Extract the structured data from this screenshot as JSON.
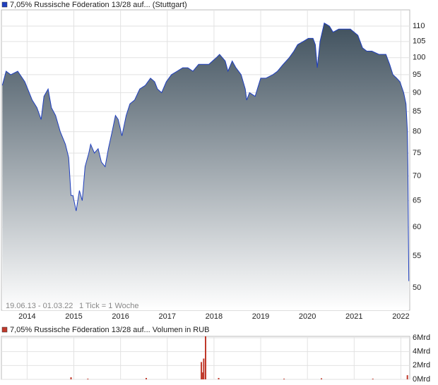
{
  "chart_data": [
    {
      "type": "area",
      "yscale": "log",
      "grid": true,
      "date_range": "19.06.13 - 01.03.22",
      "tick_info": "1 Tick = 1 Woche",
      "x": [
        2013.47,
        2013.55,
        2013.65,
        2013.8,
        2013.95,
        2014.11,
        2014.21,
        2014.3,
        2014.36,
        2014.45,
        2014.52,
        2014.61,
        2014.71,
        2014.82,
        2014.89,
        2014.94,
        2014.98,
        2015.05,
        2015.12,
        2015.18,
        2015.24,
        2015.32,
        2015.36,
        2015.44,
        2015.52,
        2015.59,
        2015.67,
        2015.74,
        2015.82,
        2015.89,
        2015.95,
        2016.03,
        2016.12,
        2016.2,
        2016.3,
        2016.41,
        2016.53,
        2016.64,
        2016.73,
        2016.79,
        2016.88,
        2016.98,
        2017.09,
        2017.21,
        2017.33,
        2017.44,
        2017.55,
        2017.67,
        2017.79,
        2017.89,
        2017.97,
        2018.05,
        2018.12,
        2018.24,
        2018.3,
        2018.39,
        2018.47,
        2018.58,
        2018.67,
        2018.7,
        2018.76,
        2018.88,
        2019.0,
        2019.11,
        2019.26,
        2019.36,
        2019.48,
        2019.61,
        2019.71,
        2019.79,
        2019.91,
        2020.02,
        2020.12,
        2020.17,
        2020.21,
        2020.27,
        2020.36,
        2020.47,
        2020.55,
        2020.67,
        2020.77,
        2020.92,
        2021.08,
        2021.18,
        2021.27,
        2021.38,
        2021.53,
        2021.68,
        2021.76,
        2021.83,
        2021.91,
        2021.98,
        2022.06,
        2022.11,
        2022.14,
        2022.15,
        2022.16,
        2022.17
      ],
      "series": [
        {
          "name": "7,05% Russische Föderation 13/28 auf... (Stuttgart)",
          "color": "#1f3fbf",
          "values": [
            92,
            96,
            95,
            96,
            93,
            88,
            86,
            83,
            89,
            91,
            86,
            84,
            80,
            77,
            74,
            66,
            66,
            63,
            67,
            65,
            72,
            75,
            77,
            75,
            76,
            73,
            72,
            76,
            80,
            84,
            83,
            79,
            84,
            87,
            88,
            91,
            92,
            94,
            93,
            91,
            90,
            93,
            95,
            96,
            97,
            97,
            96,
            98,
            98,
            98,
            99,
            100,
            101,
            99,
            96,
            99,
            97,
            95,
            91,
            88,
            90,
            89,
            94,
            94,
            95,
            96,
            98,
            100,
            102,
            104,
            105,
            106,
            106,
            104,
            97,
            105,
            111,
            110,
            108,
            109,
            109,
            109,
            107,
            103,
            102,
            102,
            101,
            101,
            98,
            95,
            94,
            93,
            90,
            87,
            80,
            72,
            60,
            51
          ]
        }
      ],
      "xlim": [
        2013.45,
        2022.19
      ],
      "xticks": [
        2014,
        2015,
        2016,
        2017,
        2018,
        2019,
        2020,
        2021,
        2022
      ],
      "ylim": [
        46.7,
        115.5
      ],
      "yticks": [
        50,
        55,
        60,
        65,
        70,
        75,
        80,
        85,
        90,
        95,
        100,
        105,
        110
      ]
    },
    {
      "type": "bar",
      "grid": true,
      "x": [
        2014.94,
        2015.3,
        2016.55,
        2017.73,
        2017.76,
        2017.78,
        2017.82,
        2018.1,
        2019.5,
        2020.3,
        2021.4,
        2022.14
      ],
      "series": [
        {
          "name": "7,05% Russische Föderation 13/28 auf... Volumen in RUB",
          "color": "#c0392b",
          "values": [
            300000000,
            100000000,
            200000000,
            2500000000,
            1000000000,
            3000000000,
            6200000000,
            200000000,
            100000000,
            150000000,
            100000000,
            600000000
          ]
        }
      ],
      "xlim": [
        2013.45,
        2022.19
      ],
      "ylim": [
        0,
        6200000000
      ],
      "yticks": [
        {
          "value": 0,
          "label": "0Mrd"
        },
        {
          "value": 2000000000,
          "label": "2Mrd"
        },
        {
          "value": 4000000000,
          "label": "4Mrd"
        },
        {
          "value": 6000000000,
          "label": "6Mrd"
        }
      ]
    }
  ]
}
